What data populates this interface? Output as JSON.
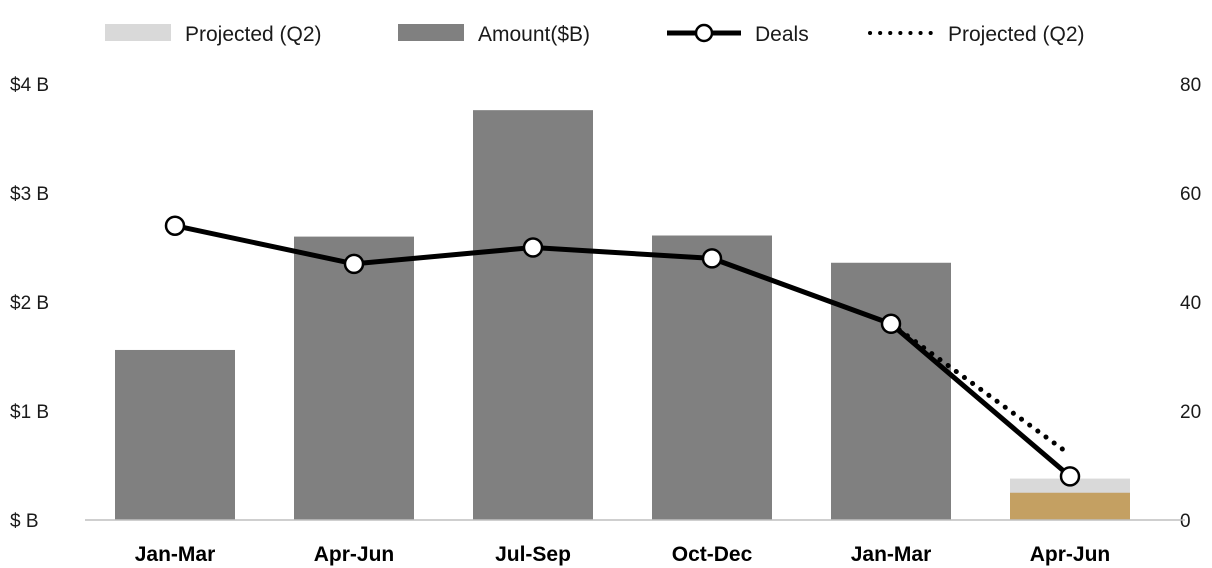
{
  "chart_data": {
    "type": "bar",
    "categories": [
      "Jan-Mar",
      "Apr-Jun",
      "Jul-Sep",
      "Oct-Dec",
      "Jan-Mar",
      "Apr-Jun"
    ],
    "series": [
      {
        "name": "Amount($B)",
        "kind": "bar",
        "axis": "left",
        "values": [
          1.56,
          2.6,
          3.76,
          2.61,
          2.36,
          null
        ]
      },
      {
        "name": "Projected (Q2)",
        "kind": "bar-projected",
        "axis": "left",
        "values": [
          null,
          null,
          null,
          null,
          null,
          0.38
        ],
        "actual_values": [
          null,
          null,
          null,
          null,
          null,
          0.25
        ]
      },
      {
        "name": "Deals",
        "kind": "line",
        "axis": "right",
        "values": [
          54,
          47,
          50,
          48,
          36,
          8
        ]
      },
      {
        "name": "Projected (Q2)",
        "kind": "line-dotted",
        "axis": "right",
        "values": [
          null,
          null,
          null,
          null,
          36,
          12
        ]
      }
    ],
    "y_left": {
      "range": [
        0,
        4
      ],
      "ticks": [
        0,
        1,
        2,
        3,
        4
      ],
      "tick_labels": [
        "$ B",
        "$1 B",
        "$2 B",
        "$3 B",
        "$4 B"
      ]
    },
    "y_right": {
      "range": [
        0,
        80
      ],
      "ticks": [
        0,
        20,
        40,
        60,
        80
      ],
      "tick_labels": [
        "0",
        "20",
        "40",
        "60",
        "80"
      ]
    },
    "legend": {
      "position": "top",
      "entries": [
        {
          "label": "Projected (Q2)",
          "symbol": "bar",
          "color": "#d9d9d9"
        },
        {
          "label": "Amount($B)",
          "symbol": "bar",
          "color": "#808080"
        },
        {
          "label": "Deals",
          "symbol": "line-marker",
          "color": "#000000"
        },
        {
          "label": "Projected (Q2)",
          "symbol": "dotted-line",
          "color": "#000000"
        }
      ]
    },
    "colors": {
      "amount_bar": "#808080",
      "projected_bar": "#d9d9d9",
      "actual_q2_bar": "#c4a062",
      "line": "#000000",
      "marker_fill": "#ffffff"
    },
    "grid": false
  }
}
